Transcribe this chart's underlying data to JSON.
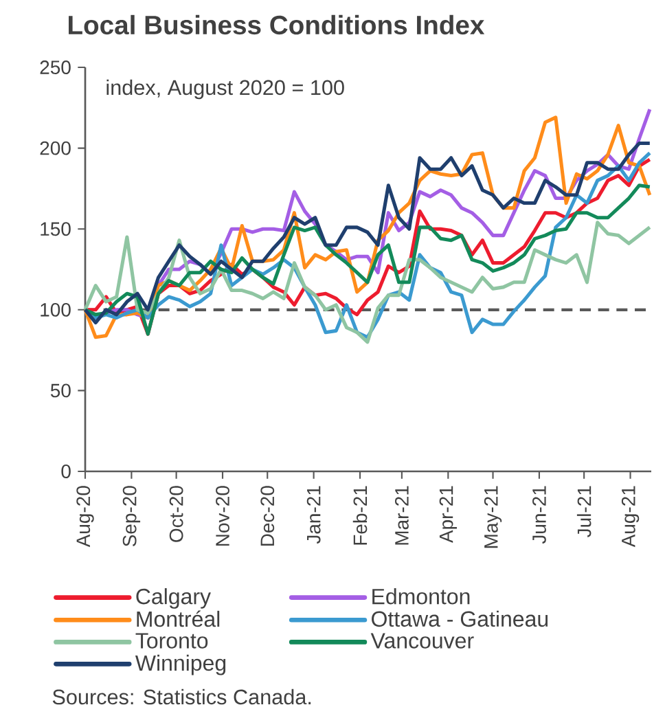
{
  "chart_data": {
    "type": "line",
    "title": "Local Business Conditions Index",
    "annotations": [
      "index, August 2020 = 100",
      "Sources: Statistics Canada."
    ],
    "x": [
      "2020-08-01",
      "2020-08-08",
      "2020-08-15",
      "2020-08-22",
      "2020-08-29",
      "2020-09-05",
      "2020-09-12",
      "2020-09-19",
      "2020-09-26",
      "2020-10-03",
      "2020-10-10",
      "2020-10-17",
      "2020-10-24",
      "2020-10-31",
      "2020-11-07",
      "2020-11-14",
      "2020-11-21",
      "2020-11-28",
      "2020-12-05",
      "2020-12-12",
      "2020-12-19",
      "2020-12-26",
      "2021-01-02",
      "2021-01-09",
      "2021-01-16",
      "2021-01-23",
      "2021-01-30",
      "2021-02-06",
      "2021-02-13",
      "2021-02-20",
      "2021-02-27",
      "2021-03-06",
      "2021-03-13",
      "2021-03-20",
      "2021-03-27",
      "2021-04-03",
      "2021-04-10",
      "2021-04-17",
      "2021-04-24",
      "2021-05-01",
      "2021-05-08",
      "2021-05-15",
      "2021-05-22",
      "2021-05-29",
      "2021-06-05",
      "2021-06-12",
      "2021-06-19",
      "2021-06-26",
      "2021-07-03",
      "2021-07-10",
      "2021-07-17",
      "2021-07-24",
      "2021-07-31",
      "2021-08-07",
      "2021-08-14"
    ],
    "series": [
      {
        "name": "Calgary",
        "color": "#ed1c2e",
        "values": [
          100,
          100,
          108,
          98,
          100,
          102,
          85,
          110,
          115,
          115,
          110,
          112,
          118,
          122,
          128,
          122,
          125,
          120,
          114,
          111,
          103,
          114,
          109,
          110,
          107,
          101,
          97,
          106,
          111,
          127,
          123,
          127,
          161,
          150,
          150,
          149,
          146,
          134,
          143,
          129,
          129,
          134,
          139,
          149,
          160,
          160,
          157,
          160,
          166,
          169,
          180,
          183,
          177,
          189,
          193
        ]
      },
      {
        "name": "Edmonton",
        "color": "#a45ee5",
        "values": [
          100,
          95,
          98,
          100,
          100,
          97,
          95,
          115,
          125,
          125,
          130,
          128,
          122,
          135,
          150,
          150,
          148,
          150,
          150,
          149,
          173,
          161,
          153,
          140,
          136,
          131,
          133,
          133,
          123,
          160,
          149,
          154,
          173,
          170,
          174,
          171,
          163,
          160,
          154,
          146,
          146,
          160,
          174,
          186,
          183,
          169,
          169,
          180,
          186,
          190,
          196,
          189,
          187,
          206,
          224
        ]
      },
      {
        "name": "Montréal",
        "color": "#ff8c1a",
        "values": [
          100,
          83,
          84,
          97,
          97,
          98,
          95,
          115,
          118,
          115,
          112,
          118,
          125,
          138,
          125,
          152,
          130,
          130,
          131,
          137,
          160,
          126,
          134,
          131,
          136,
          137,
          111,
          117,
          143,
          149,
          160,
          166,
          180,
          186,
          184,
          183,
          184,
          196,
          197,
          171,
          163,
          163,
          186,
          194,
          216,
          219,
          166,
          184,
          181,
          186,
          196,
          214,
          191,
          189,
          171
        ]
      },
      {
        "name": "Ottawa - Gatineau",
        "color": "#3b9ad0",
        "values": [
          100,
          95,
          97,
          95,
          98,
          100,
          95,
          103,
          108,
          106,
          102,
          105,
          110,
          140,
          115,
          120,
          125,
          122,
          126,
          131,
          126,
          114,
          103,
          86,
          87,
          103,
          86,
          83,
          94,
          109,
          111,
          106,
          134,
          126,
          123,
          111,
          109,
          86,
          94,
          91,
          91,
          99,
          106,
          114,
          121,
          151,
          157,
          171,
          166,
          180,
          183,
          189,
          180,
          191,
          197
        ]
      },
      {
        "name": "Toronto",
        "color": "#8fc5a2",
        "values": [
          100,
          115,
          105,
          108,
          145,
          100,
          98,
          110,
          120,
          143,
          120,
          110,
          113,
          125,
          112,
          112,
          110,
          107,
          111,
          107,
          129,
          114,
          109,
          100,
          103,
          89,
          86,
          80,
          101,
          109,
          109,
          131,
          131,
          126,
          120,
          117,
          114,
          111,
          120,
          113,
          114,
          117,
          117,
          137,
          134,
          131,
          129,
          134,
          117,
          154,
          147,
          146,
          141,
          146,
          151
        ]
      },
      {
        "name": "Vancouver",
        "color": "#138a5a",
        "values": [
          100,
          97,
          98,
          105,
          110,
          108,
          85,
          110,
          118,
          115,
          123,
          123,
          130,
          125,
          123,
          132,
          125,
          120,
          116,
          134,
          151,
          149,
          151,
          140,
          134,
          129,
          123,
          117,
          134,
          140,
          117,
          117,
          151,
          151,
          144,
          143,
          146,
          131,
          129,
          124,
          126,
          129,
          134,
          144,
          146,
          149,
          150,
          160,
          160,
          157,
          157,
          163,
          169,
          177,
          176
        ]
      },
      {
        "name": "Winnipeg",
        "color": "#1f3f6e",
        "values": [
          100,
          92,
          100,
          97,
          105,
          110,
          100,
          120,
          130,
          140,
          133,
          128,
          122,
          130,
          125,
          120,
          130,
          130,
          138,
          145,
          157,
          153,
          157,
          140,
          140,
          151,
          151,
          148,
          140,
          177,
          157,
          150,
          194,
          187,
          187,
          194,
          183,
          189,
          174,
          171,
          163,
          169,
          166,
          166,
          180,
          176,
          171,
          171,
          191,
          191,
          187,
          187,
          196,
          203,
          203
        ]
      }
    ],
    "xlim": [
      "2020-08-01",
      "2021-08-15"
    ],
    "xticks": [
      {
        "value": "2020-08-01",
        "label": "Aug-20"
      },
      {
        "value": "2020-09-01",
        "label": "Sep-20"
      },
      {
        "value": "2020-10-01",
        "label": "Oct-20"
      },
      {
        "value": "2020-11-01",
        "label": "Nov-20"
      },
      {
        "value": "2020-12-01",
        "label": "Dec-20"
      },
      {
        "value": "2021-01-01",
        "label": "Jan-21"
      },
      {
        "value": "2021-02-01",
        "label": "Feb-21"
      },
      {
        "value": "2021-03-01",
        "label": "Mar-21"
      },
      {
        "value": "2021-04-01",
        "label": "Apr-21"
      },
      {
        "value": "2021-05-01",
        "label": "May-21"
      },
      {
        "value": "2021-06-01",
        "label": "Jun-21"
      },
      {
        "value": "2021-07-01",
        "label": "Jul-21"
      },
      {
        "value": "2021-08-01",
        "label": "Aug-21"
      }
    ],
    "ylim": [
      0,
      250
    ],
    "yticks": [
      0,
      50,
      100,
      150,
      200,
      250
    ],
    "ref_lines": [
      {
        "axis": "y",
        "value": 100,
        "color": "#595959",
        "line_style": "dashed"
      }
    ],
    "grid": false,
    "legend": "bottom",
    "marker": "none",
    "line_style": "solid"
  }
}
